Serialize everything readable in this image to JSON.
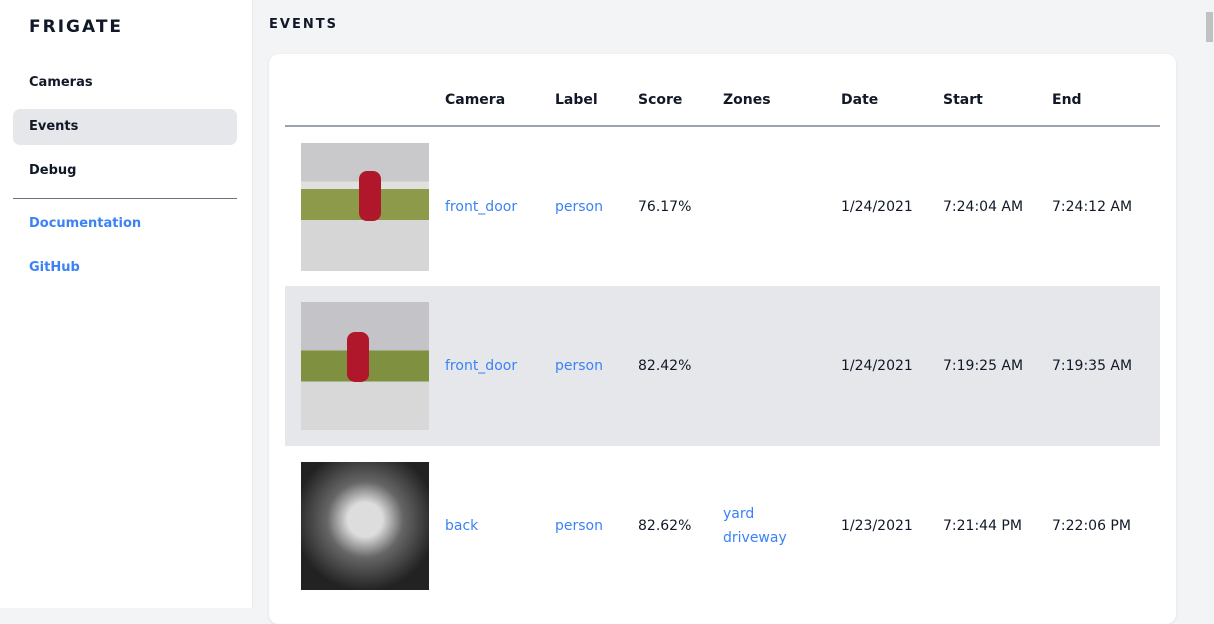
{
  "sidebar": {
    "logo": "FRIGATE",
    "items": [
      {
        "label": "Cameras"
      },
      {
        "label": "Events",
        "active": true
      },
      {
        "label": "Debug"
      }
    ],
    "links": [
      {
        "label": "Documentation"
      },
      {
        "label": "GitHub"
      }
    ]
  },
  "page": {
    "title": "EVENTS"
  },
  "table": {
    "headers": [
      "",
      "Camera",
      "Label",
      "Score",
      "Zones",
      "Date",
      "Start",
      "End"
    ],
    "rows": [
      {
        "camera": "front_door",
        "label": "person",
        "score": "76.17%",
        "zones": [
          "",
          ""
        ],
        "date": "1/24/2021",
        "start": "7:24:04 AM",
        "end": "7:24:12 AM"
      },
      {
        "camera": "front_door",
        "label": "person",
        "score": "82.42%",
        "zones": [
          "",
          ""
        ],
        "date": "1/24/2021",
        "start": "7:19:25 AM",
        "end": "7:19:35 AM"
      },
      {
        "camera": "back",
        "label": "person",
        "score": "82.62%",
        "zones": [
          "yard",
          "driveway"
        ],
        "date": "1/23/2021",
        "start": "7:21:44 PM",
        "end": "7:22:06 PM"
      }
    ]
  },
  "colors": {
    "link": "#3b82f6",
    "active_bg": "#e5e7eb"
  }
}
